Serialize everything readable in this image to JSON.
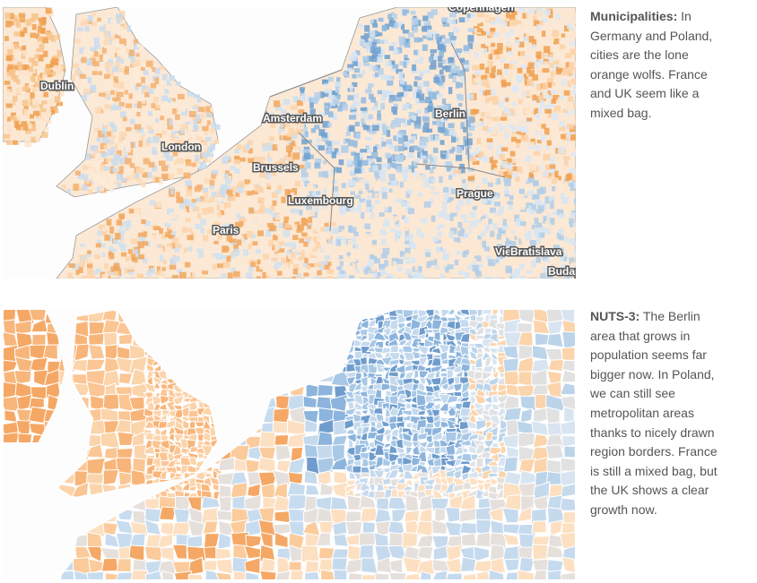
{
  "panels": [
    {
      "map_labels": [
        "Copenhagen",
        "Dublin",
        "London",
        "Amsterdam",
        "Brussels",
        "Luxembourg",
        "Paris",
        "Berlin",
        "Prague",
        "Vienna",
        "Bratislava",
        "Budapest"
      ],
      "caption_heading": "Municipalities:",
      "caption_text": "In Germany and Poland, cities are the lone orange wolfs. France and UK seem like a mixed bag."
    },
    {
      "caption_heading": "NUTS-3:",
      "caption_text": "The Berlin area that grows in population seems far bigger now. In Poland, we can still see metropolitan areas thanks to nicely drawn region borders. France is still a mixed bag, but the UK shows a clear growth now."
    }
  ]
}
